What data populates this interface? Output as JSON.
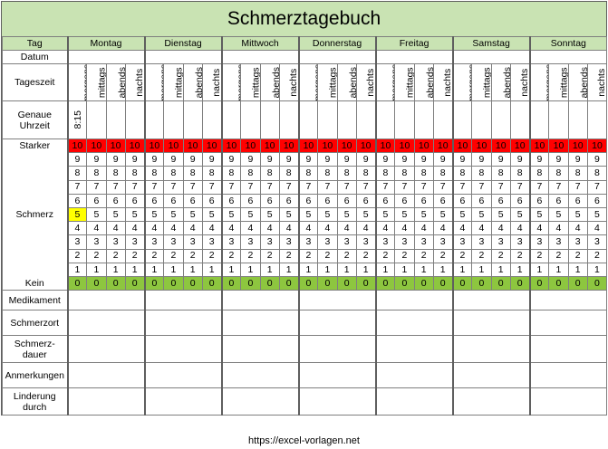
{
  "title": "Schmerztagebuch",
  "labels": {
    "tag": "Tag",
    "datum": "Datum",
    "tageszeit": "Tageszeit",
    "uhrzeit": "Genaue Uhrzeit",
    "starker": "Starker",
    "schmerz": "Schmerz",
    "kein": "Kein",
    "medikament": "Medikament",
    "schmerzort": "Schmerzort",
    "dauer": "Schmerz-dauer",
    "anmerkungen": "Anmerkungen",
    "linderung": "Linderung durch"
  },
  "days": [
    "Montag",
    "Dienstag",
    "Mittwoch",
    "Donnerstag",
    "Freitag",
    "Samstag",
    "Sonntag"
  ],
  "times": [
    "morgens",
    "mittags",
    "abends",
    "nachts"
  ],
  "uhrzeit_value": "8:15",
  "levels": [
    "10",
    "9",
    "8",
    "7",
    "6",
    "5",
    "4",
    "3",
    "2",
    "1",
    "0"
  ],
  "selected": {
    "day": 0,
    "time": 0,
    "level": "5"
  },
  "colors": {
    "header_green": "#c9e3b3",
    "level_red": "#ff0000",
    "level_green": "#8dc63f",
    "highlight": "#ffff00"
  },
  "footer": "https://excel-vorlagen.net"
}
